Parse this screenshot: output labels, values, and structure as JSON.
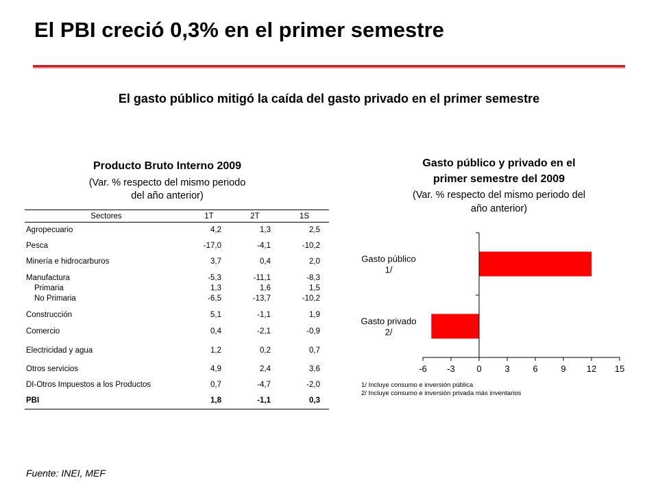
{
  "title": "El PBI creció 0,3% en el primer semestre",
  "subheading": "El gasto público mitigó la caída del gasto privado en el primer semestre",
  "table": {
    "title": "Producto Bruto Interno 2009",
    "subtitle_line1": "(Var. % respecto del mismo periodo",
    "subtitle_line2": "del año anterior)",
    "headers": [
      "Sectores",
      "1T",
      "2T",
      "1S"
    ],
    "rows": [
      {
        "labels": [
          "Agropecuario"
        ],
        "v1": [
          "4,2"
        ],
        "v2": [
          "1,3"
        ],
        "v3": [
          "2,5"
        ]
      },
      {
        "labels": [
          "Pesca"
        ],
        "v1": [
          "-17,0"
        ],
        "v2": [
          "-4,1"
        ],
        "v3": [
          "-10,2"
        ]
      },
      {
        "labels": [
          "Minería e hidrocarburos"
        ],
        "v1": [
          "3,7"
        ],
        "v2": [
          "0,4"
        ],
        "v3": [
          "2,0"
        ]
      },
      {
        "labels": [
          "Manufactura",
          "Primaria",
          "No Primaria"
        ],
        "v1": [
          "-5,3",
          "1,3",
          "-6,5"
        ],
        "v2": [
          "-11,1",
          "1,6",
          "-13,7"
        ],
        "v3": [
          "-8,3",
          "1,5",
          "-10,2"
        ]
      },
      {
        "labels": [
          "Construcción"
        ],
        "v1": [
          "5,1"
        ],
        "v2": [
          "-1,1"
        ],
        "v3": [
          "1,9"
        ]
      },
      {
        "labels": [
          "Comercio"
        ],
        "v1": [
          "0,4"
        ],
        "v2": [
          "-2,1"
        ],
        "v3": [
          "-0,9"
        ]
      },
      {
        "labels": [
          "Electricidad y agua"
        ],
        "v1": [
          "1,2"
        ],
        "v2": [
          "0,2"
        ],
        "v3": [
          "0,7"
        ]
      },
      {
        "labels": [
          "Otros servicios"
        ],
        "v1": [
          "4,9"
        ],
        "v2": [
          "2,4"
        ],
        "v3": [
          "3,6"
        ]
      },
      {
        "labels": [
          "DI-Otros Impuestos a los Productos"
        ],
        "v1": [
          "0,7"
        ],
        "v2": [
          "-4,7"
        ],
        "v3": [
          "-2,0"
        ]
      }
    ],
    "total": {
      "label": "PBI",
      "v1": "1,8",
      "v2": "-1,1",
      "v3": "0,3"
    }
  },
  "chart_data": {
    "type": "bar",
    "orientation": "horizontal",
    "title_line1": "Gasto público y privado en el",
    "title_line2": "primer semestre del 2009",
    "subtitle_line1": "(Var. % respecto del mismo periodo del",
    "subtitle_line2": "año anterior)",
    "categories": [
      {
        "line1": "Gasto público",
        "line2": "1/"
      },
      {
        "line1": "Gasto privado",
        "line2": "2/"
      }
    ],
    "values": [
      12.0,
      -5.1
    ],
    "xlim": [
      -6,
      15
    ],
    "xticks": [
      -6,
      -3,
      0,
      3,
      6,
      9,
      12,
      15
    ],
    "bar_color": "#ff0000",
    "notes": [
      "1/ Incluye consumo e inversión pública",
      "2/ Incluye consumo e inversión privada más inventarios"
    ]
  },
  "source": "Fuente: INEI, MEF"
}
